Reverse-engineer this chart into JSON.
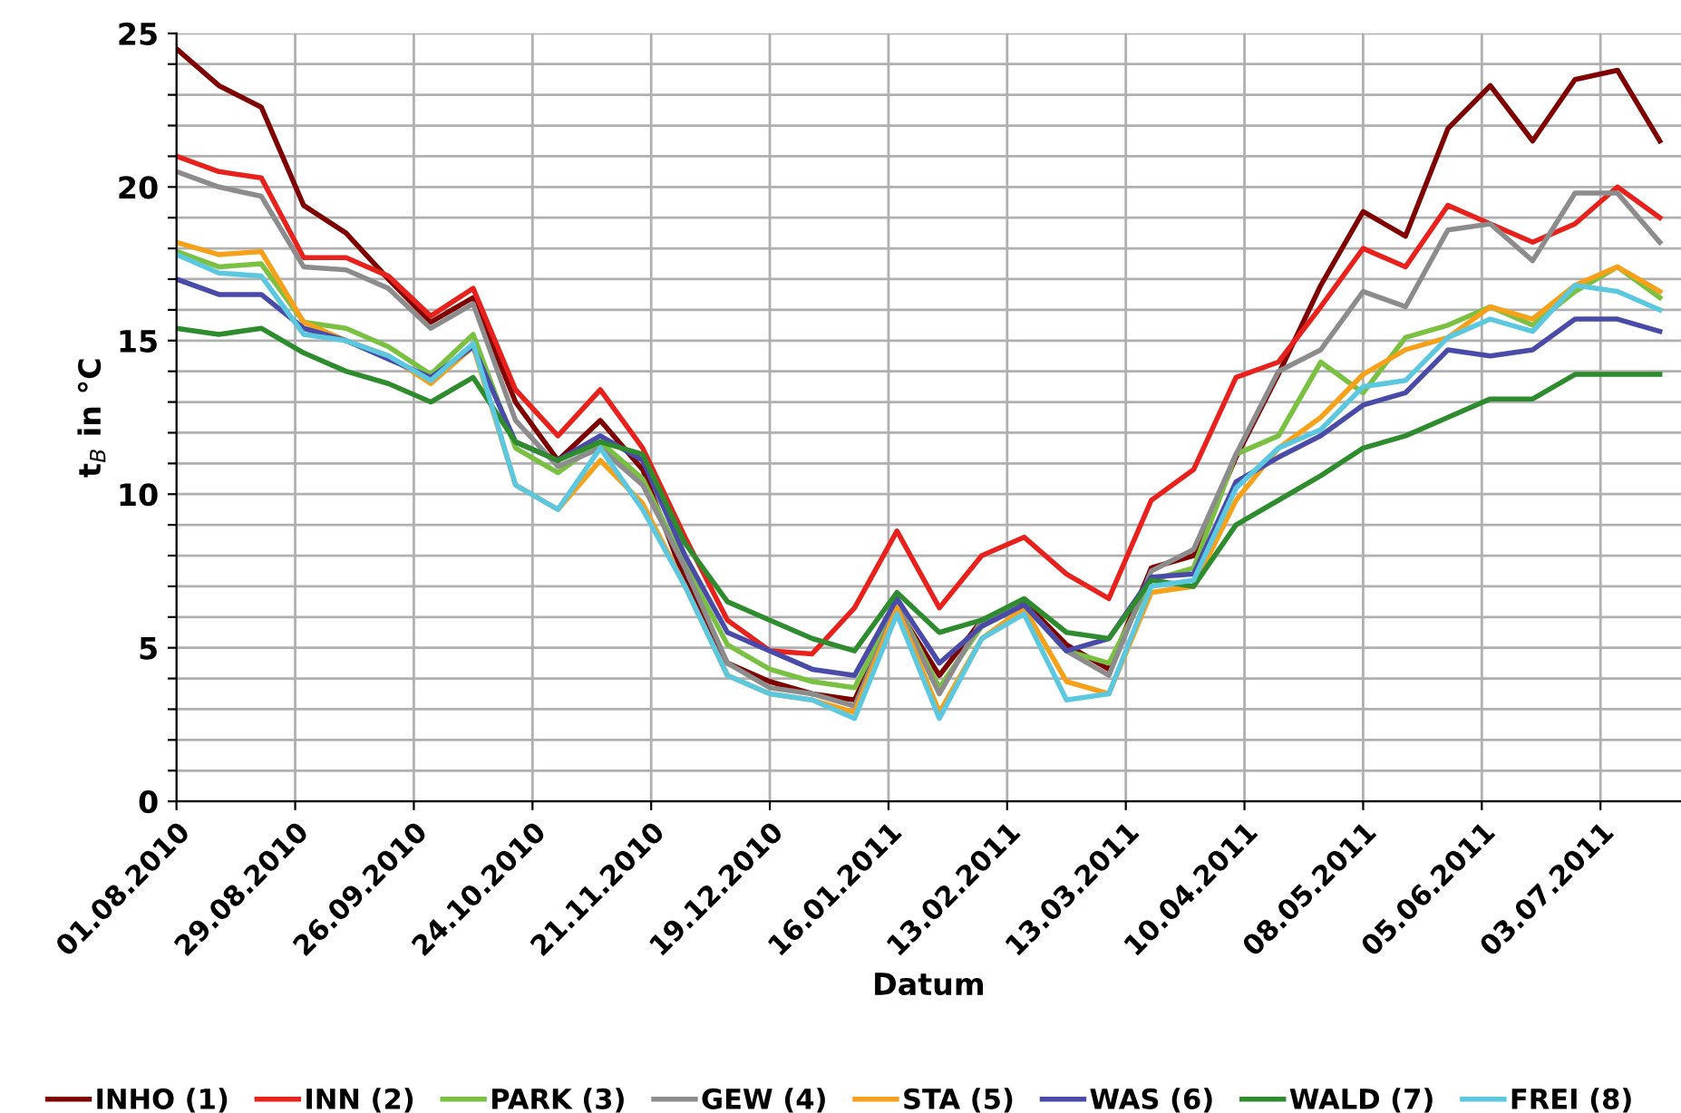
{
  "chart_data": {
    "type": "line",
    "xlabel": "Datum",
    "ylabel": "t$_{B}$ in °C",
    "x": [
      "2010-08-01",
      "2010-08-11",
      "2010-08-21",
      "2010-08-31",
      "2010-09-10",
      "2010-09-20",
      "2010-09-30",
      "2010-10-10",
      "2010-10-20",
      "2010-10-30",
      "2010-11-09",
      "2010-11-19",
      "2010-11-29",
      "2010-12-09",
      "2010-12-19",
      "2010-12-29",
      "2011-01-08",
      "2011-01-18",
      "2011-01-28",
      "2011-02-07",
      "2011-02-17",
      "2011-02-27",
      "2011-03-09",
      "2011-03-19",
      "2011-03-29",
      "2011-04-08",
      "2011-04-18",
      "2011-04-28",
      "2011-05-08",
      "2011-05-18",
      "2011-05-28",
      "2011-06-07",
      "2011-06-17",
      "2011-06-27",
      "2011-07-07",
      "2011-07-17"
    ],
    "series": [
      {
        "name": "INHO (1)",
        "color": "#7f0000",
        "values": [
          24.5,
          23.3,
          22.6,
          19.4,
          18.5,
          17.0,
          15.6,
          16.4,
          13.0,
          11.1,
          12.4,
          10.8,
          7.2,
          4.5,
          3.9,
          3.5,
          3.3,
          6.3,
          4.1,
          5.9,
          6.5,
          5.1,
          4.3,
          7.6,
          8.0,
          11.2,
          13.9,
          16.8,
          19.2,
          18.4,
          21.9,
          23.3,
          21.5,
          23.5,
          23.8,
          21.5
        ]
      },
      {
        "name": "INN (2)",
        "color": "#e8211d",
        "values": [
          21.0,
          20.5,
          20.3,
          17.7,
          17.7,
          17.1,
          15.8,
          16.7,
          13.4,
          11.9,
          13.4,
          11.5,
          8.6,
          5.9,
          4.9,
          4.8,
          6.3,
          8.8,
          6.3,
          8.0,
          8.6,
          7.4,
          6.6,
          9.8,
          10.8,
          13.8,
          14.3,
          16.1,
          18.0,
          17.4,
          19.4,
          18.8,
          18.2,
          18.8,
          20.0,
          19.0
        ]
      },
      {
        "name": "PARK (3)",
        "color": "#7ac142",
        "values": [
          17.9,
          17.4,
          17.5,
          15.6,
          15.4,
          14.8,
          13.9,
          15.2,
          11.5,
          10.7,
          11.7,
          10.5,
          7.7,
          5.1,
          4.3,
          3.9,
          3.7,
          6.4,
          3.7,
          5.7,
          6.4,
          4.9,
          4.5,
          7.2,
          7.6,
          11.3,
          11.9,
          14.3,
          13.3,
          15.1,
          15.5,
          16.1,
          15.5,
          16.6,
          17.4,
          16.4
        ]
      },
      {
        "name": "GEW (4)",
        "color": "#8c8c8c",
        "values": [
          20.5,
          20.0,
          19.7,
          17.4,
          17.3,
          16.7,
          15.4,
          16.2,
          12.4,
          10.9,
          11.5,
          10.3,
          7.6,
          4.5,
          3.7,
          3.5,
          3.1,
          6.4,
          3.5,
          5.9,
          6.4,
          4.9,
          4.1,
          7.5,
          8.2,
          11.3,
          14.0,
          14.7,
          16.6,
          16.1,
          18.6,
          18.8,
          17.6,
          19.8,
          19.8,
          18.2
        ]
      },
      {
        "name": "STA (5)",
        "color": "#f7a11a",
        "values": [
          18.2,
          17.8,
          17.9,
          15.6,
          15.0,
          14.5,
          13.6,
          14.8,
          10.3,
          9.5,
          11.1,
          9.7,
          7.0,
          4.1,
          3.5,
          3.3,
          2.9,
          6.3,
          2.9,
          5.3,
          6.3,
          3.9,
          3.5,
          6.8,
          7.0,
          9.8,
          11.5,
          12.5,
          13.9,
          14.7,
          15.1,
          16.1,
          15.7,
          16.8,
          17.4,
          16.6
        ]
      },
      {
        "name": "WAS (6)",
        "color": "#4a4aa8",
        "values": [
          17.0,
          16.5,
          16.5,
          15.4,
          15.0,
          14.4,
          13.8,
          14.8,
          11.7,
          11.1,
          11.9,
          11.1,
          8.0,
          5.5,
          4.9,
          4.3,
          4.1,
          6.6,
          4.5,
          5.7,
          6.4,
          4.9,
          5.3,
          7.3,
          7.4,
          10.4,
          11.2,
          11.9,
          12.9,
          13.3,
          14.7,
          14.5,
          14.7,
          15.7,
          15.7,
          15.3
        ]
      },
      {
        "name": "WALD (7)",
        "color": "#2e8b2e",
        "values": [
          15.4,
          15.2,
          15.4,
          14.6,
          14.0,
          13.6,
          13.0,
          13.8,
          11.7,
          11.1,
          11.7,
          11.3,
          8.4,
          6.5,
          5.9,
          5.3,
          4.9,
          6.8,
          5.5,
          5.9,
          6.6,
          5.5,
          5.3,
          7.2,
          7.0,
          9.0,
          9.8,
          10.6,
          11.5,
          11.9,
          12.5,
          13.1,
          13.1,
          13.9,
          13.9,
          13.9
        ]
      },
      {
        "name": "FREI (8)",
        "color": "#5bc8e0",
        "values": [
          17.8,
          17.2,
          17.1,
          15.2,
          15.0,
          14.5,
          13.7,
          14.9,
          10.3,
          9.5,
          11.5,
          9.5,
          7.0,
          4.1,
          3.5,
          3.3,
          2.7,
          6.1,
          2.7,
          5.3,
          6.1,
          3.3,
          3.5,
          7.0,
          7.2,
          10.2,
          11.5,
          12.1,
          13.5,
          13.7,
          15.1,
          15.7,
          15.3,
          16.8,
          16.6,
          16.0
        ]
      }
    ],
    "xlim": [
      "2010-08-01",
      "2011-07-22"
    ],
    "xticks": [
      {
        "value": "2010-08-01",
        "label": "01.08.2010"
      },
      {
        "value": "2010-08-29",
        "label": "29.08.2010"
      },
      {
        "value": "2010-09-26",
        "label": "26.09.2010"
      },
      {
        "value": "2010-10-24",
        "label": "24.10.2010"
      },
      {
        "value": "2010-11-21",
        "label": "21.11.2010"
      },
      {
        "value": "2010-12-19",
        "label": "19.12.2010"
      },
      {
        "value": "2011-01-16",
        "label": "16.01.2011"
      },
      {
        "value": "2011-02-13",
        "label": "13.02.2011"
      },
      {
        "value": "2011-03-13",
        "label": "13.03.2011"
      },
      {
        "value": "2011-04-10",
        "label": "10.04.2011"
      },
      {
        "value": "2011-05-08",
        "label": "08.05.2011"
      },
      {
        "value": "2011-06-05",
        "label": "05.06.2011"
      },
      {
        "value": "2011-07-03",
        "label": "03.07.2011"
      }
    ],
    "ylim": [
      0,
      25
    ],
    "yticks": [
      0,
      {
        "value": 1,
        "label": null
      },
      {
        "value": 2,
        "label": null
      },
      {
        "value": 3,
        "label": null
      },
      {
        "value": 4,
        "label": null
      },
      5,
      {
        "value": 6,
        "label": null
      },
      {
        "value": 7,
        "label": null
      },
      {
        "value": 8,
        "label": null
      },
      {
        "value": 9,
        "label": null
      },
      10,
      {
        "value": 11,
        "label": null
      },
      {
        "value": 12,
        "label": null
      },
      {
        "value": 13,
        "label": null
      },
      {
        "value": 14,
        "label": null
      },
      15,
      {
        "value": 16,
        "label": null
      },
      {
        "value": 17,
        "label": null
      },
      {
        "value": 18,
        "label": null
      },
      {
        "value": 19,
        "label": null
      },
      20,
      {
        "value": 21,
        "label": null
      },
      {
        "value": 22,
        "label": null
      },
      {
        "value": 23,
        "label": null
      },
      {
        "value": 24,
        "label": null
      },
      25
    ],
    "grid": true,
    "legend": "bottom",
    "marker": "none",
    "line_style": "solid"
  }
}
